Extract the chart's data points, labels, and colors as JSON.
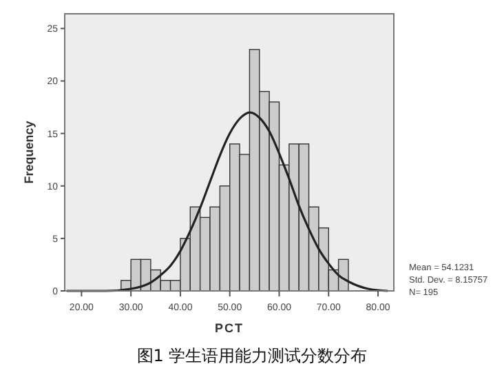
{
  "chart_data": {
    "type": "histogram",
    "title": "图1 学生语用能力测试分数分布",
    "xlabel": "PCT",
    "ylabel": "Frequency",
    "bins": [
      28,
      30,
      32,
      34,
      36,
      38,
      40,
      42,
      44,
      46,
      48,
      50,
      52,
      54,
      56,
      58,
      60,
      62,
      64,
      66,
      68,
      70,
      72,
      74
    ],
    "series": [
      {
        "color": "#cccccc",
        "values": [
          1,
          3,
          3,
          2,
          1,
          1,
          5,
          8,
          7,
          8,
          10,
          14,
          13,
          23,
          19,
          18,
          12,
          14,
          14,
          8,
          6,
          2,
          3
        ]
      },
      {
        "type": "line",
        "color": "#222222",
        "x": [
          17,
          20,
          25,
          30,
          34,
          36,
          38,
          40,
          42,
          44,
          46,
          48,
          50,
          52,
          54.1,
          56,
          58,
          60,
          62,
          64,
          66,
          68,
          70,
          72,
          74,
          78,
          82
        ],
        "values": [
          0,
          0,
          0,
          0.2,
          0.8,
          1.5,
          2.4,
          3.8,
          5.7,
          7.9,
          10.4,
          12.9,
          15,
          16.4,
          17,
          16.5,
          15.2,
          13.1,
          10.7,
          8.1,
          5.9,
          4,
          2.6,
          1.5,
          0.9,
          0.2,
          0
        ]
      }
    ],
    "xlim": [
      16.6,
      83.2
    ],
    "ylim": [
      0,
      26.4
    ],
    "xticks": [
      {
        "value": 20,
        "label": "20.00"
      },
      {
        "value": 30,
        "label": "30.00"
      },
      {
        "value": 40,
        "label": "40.00"
      },
      {
        "value": 50,
        "label": "50.00"
      },
      {
        "value": 60,
        "label": "60.00"
      },
      {
        "value": 70,
        "label": "70.00"
      },
      {
        "value": 80,
        "label": "80.00"
      }
    ],
    "yticks": [
      0,
      5,
      10,
      15,
      20,
      25
    ],
    "annotations": [
      "Mean = 54.1231",
      "Std. Dev. = 8.15757",
      "N= 195"
    ]
  }
}
